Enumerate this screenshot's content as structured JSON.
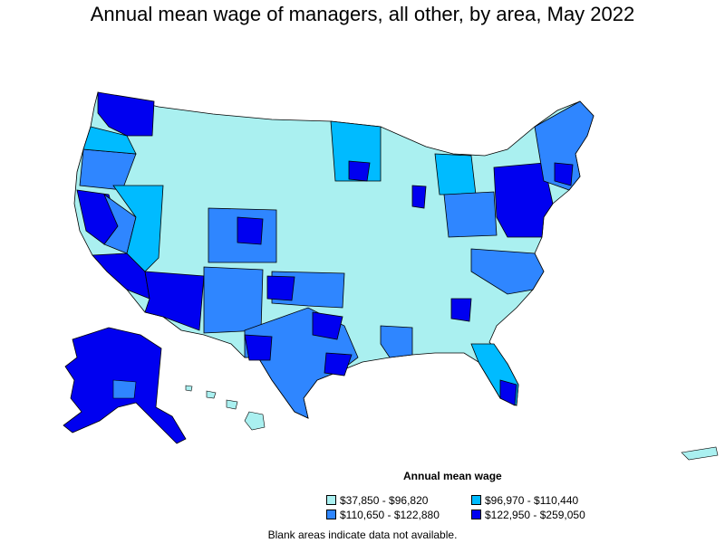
{
  "title": "Annual mean wage of managers, all other, by area, May 2022",
  "legend": {
    "title": "Annual mean wage",
    "items": [
      {
        "label": "$37,850 - $96,820",
        "color": "#aaf0f0"
      },
      {
        "label": "$96,970 - $110,440",
        "color": "#00bbff"
      },
      {
        "label": "$110,650 - $122,880",
        "color": "#2f86ff"
      },
      {
        "label": "$122,950 - $259,050",
        "color": "#0000f0"
      }
    ]
  },
  "footnote": "Blank areas indicate data not available.",
  "colors": {
    "low": "#aaf0f0",
    "mid_low": "#00bbff",
    "mid_high": "#2f86ff",
    "high": "#0000f0",
    "border": "#000000"
  }
}
